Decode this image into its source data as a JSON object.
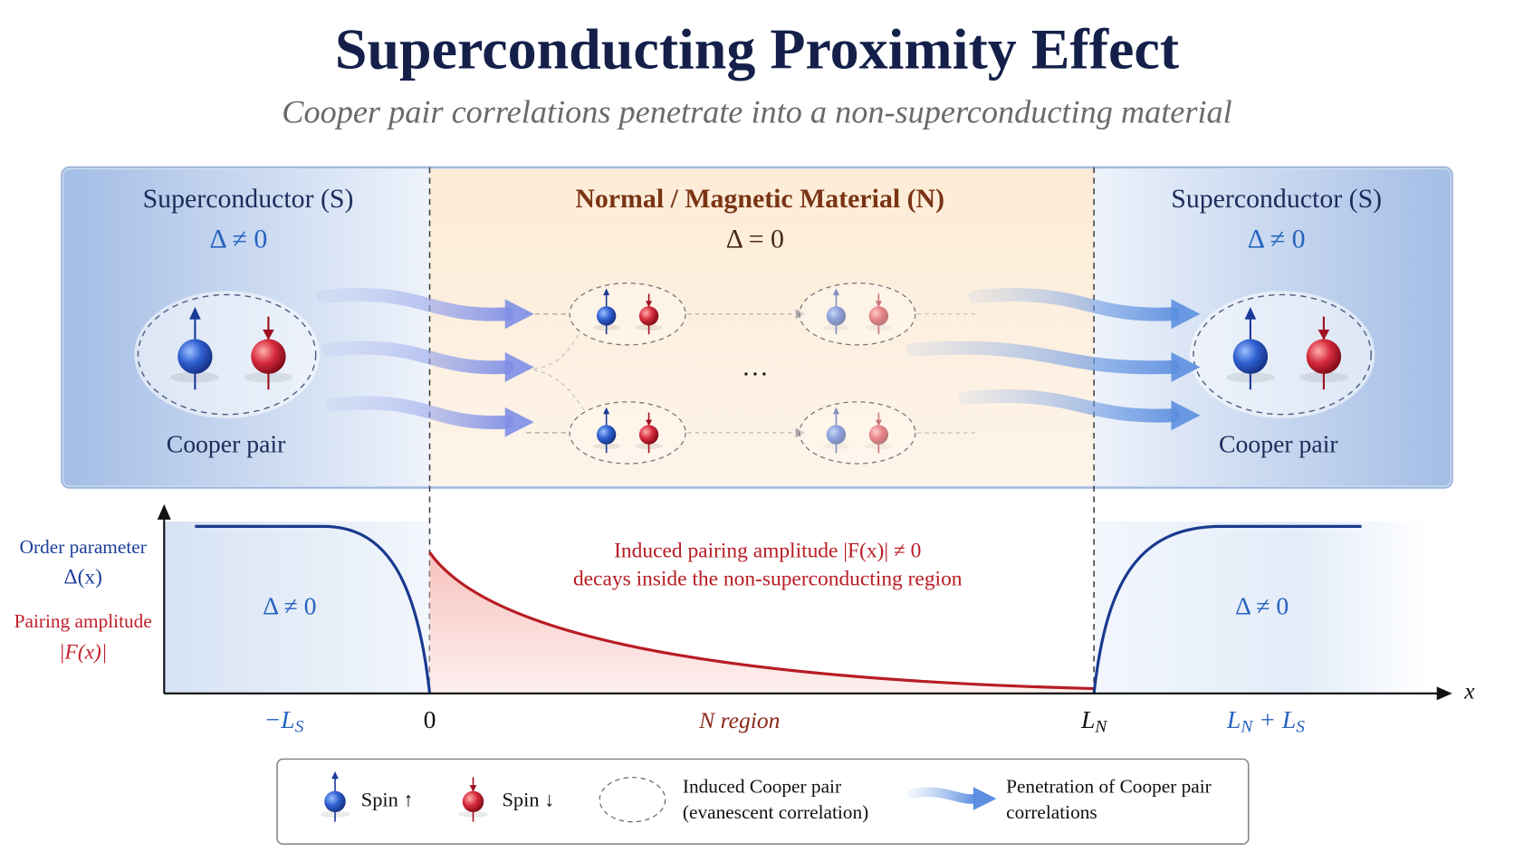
{
  "header": {
    "title": "Superconducting Proximity Effect",
    "subtitle": "Cooper pair correlations penetrate into a non-superconducting material"
  },
  "regions": [
    {
      "name": "Superconductor (S)",
      "gap": "Δ ≠ 0",
      "pair_label": "Cooper pair"
    },
    {
      "name": "Normal / Magnetic Material (N)",
      "gap": "Δ = 0",
      "ellipsis": "…"
    },
    {
      "name": "Superconductor (S)",
      "gap": "Δ ≠ 0",
      "pair_label": "Cooper pair"
    }
  ],
  "plot": {
    "order_label": [
      "Order parameter",
      "Δ(x)"
    ],
    "pairing_label": [
      "Pairing amplitude",
      "|F(x)|"
    ],
    "x_axis": "x",
    "annotation": [
      "Induced pairing amplitude |F(x)| ≠ 0",
      "decays inside the non-superconducting region"
    ],
    "left_gap": "Δ ≠ 0",
    "right_gap": "Δ ≠ 0",
    "ticks": [
      [
        "−L",
        "S"
      ],
      [
        "0"
      ],
      [
        "N region"
      ],
      [
        "L",
        "N"
      ],
      [
        "L",
        "N",
        " + L",
        "S"
      ]
    ]
  },
  "legend": {
    "spin_up": "Spin ↑",
    "spin_down": "Spin ↓",
    "induced_pair": [
      "Induced Cooper pair",
      "(evanescent correlation)"
    ],
    "penetration": [
      "Penetration of Cooper pair",
      "correlations"
    ]
  }
}
